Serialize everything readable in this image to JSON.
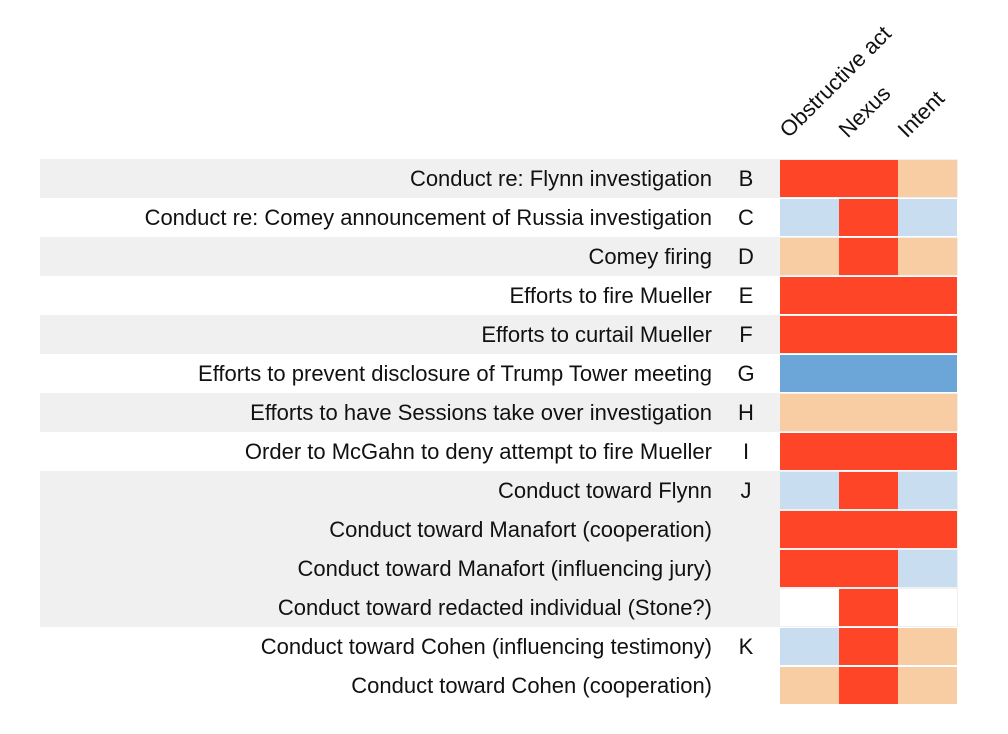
{
  "chart_data": {
    "type": "heatmap",
    "columns": [
      "Obstructive act",
      "Nexus",
      "Intent"
    ],
    "rows": [
      {
        "label": "Conduct re: Flynn investigation",
        "letter": "B",
        "values": [
          "red",
          "red",
          "tan"
        ]
      },
      {
        "label": "Conduct re: Comey announcement of Russia investigation",
        "letter": "C",
        "values": [
          "lightblue",
          "red",
          "lightblue"
        ]
      },
      {
        "label": "Comey firing",
        "letter": "D",
        "values": [
          "tan",
          "red",
          "tan"
        ]
      },
      {
        "label": "Efforts to fire Mueller",
        "letter": "E",
        "values": [
          "red",
          "red",
          "red"
        ]
      },
      {
        "label": "Efforts to curtail Mueller",
        "letter": "F",
        "values": [
          "red",
          "red",
          "red"
        ]
      },
      {
        "label": "Efforts to prevent disclosure of Trump Tower meeting",
        "letter": "G",
        "values": [
          "blue",
          "blue",
          "blue"
        ]
      },
      {
        "label": "Efforts to have Sessions take over investigation",
        "letter": "H",
        "values": [
          "tan",
          "tan",
          "tan"
        ]
      },
      {
        "label": "Order to McGahn to deny attempt to fire Mueller",
        "letter": "I",
        "values": [
          "red",
          "red",
          "red"
        ]
      },
      {
        "label": "Conduct toward Flynn",
        "letter": "J",
        "values": [
          "lightblue",
          "red",
          "lightblue"
        ]
      },
      {
        "label": "Conduct toward Manafort (cooperation)",
        "letter": "",
        "values": [
          "red",
          "red",
          "red"
        ]
      },
      {
        "label": "Conduct toward Manafort (influencing jury)",
        "letter": "",
        "values": [
          "red",
          "red",
          "lightblue"
        ]
      },
      {
        "label": "Conduct toward redacted individual (Stone?)",
        "letter": "",
        "values": [
          "white",
          "red",
          "white"
        ]
      },
      {
        "label": "Conduct toward Cohen (influencing testimony)",
        "letter": "K",
        "values": [
          "lightblue",
          "red",
          "tan"
        ]
      },
      {
        "label": "Conduct toward Cohen (cooperation)",
        "letter": "",
        "values": [
          "tan",
          "red",
          "tan"
        ]
      }
    ],
    "shaded_rows": [
      0,
      2,
      4,
      6,
      8,
      9,
      10,
      11
    ]
  },
  "colors": {
    "red": "#ff4527",
    "tan": "#f9cda3",
    "lightblue": "#c9ddf0",
    "blue": "#6ca5d8",
    "white": "#ffffff",
    "band": "#f0f0f0",
    "cell_border": "#ffffff"
  }
}
